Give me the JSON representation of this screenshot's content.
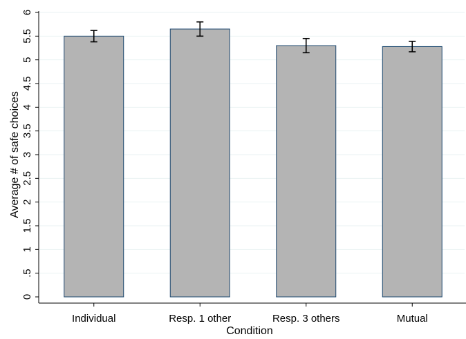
{
  "chart_data": {
    "type": "bar",
    "categories": [
      "Individual",
      "Resp. 1 other",
      "Resp. 3 others",
      "Mutual"
    ],
    "values": [
      5.5,
      5.65,
      5.3,
      5.28
    ],
    "error_bars": [
      {
        "low": 5.38,
        "high": 5.62
      },
      {
        "low": 5.5,
        "high": 5.8
      },
      {
        "low": 5.15,
        "high": 5.45
      },
      {
        "low": 5.17,
        "high": 5.39
      }
    ],
    "xlabel": "Condition",
    "ylabel": "Average # of safe choices",
    "ylim": [
      0,
      6
    ],
    "yticks": [
      0,
      0.5,
      1,
      1.5,
      2,
      2.5,
      3,
      3.5,
      4,
      4.5,
      5,
      5.5,
      6
    ],
    "ytick_labels": [
      "0",
      ".5",
      "1",
      "1.5",
      "2",
      "2.5",
      "3",
      "3.5",
      "4",
      "4.5",
      "5",
      "5.5",
      "6"
    ],
    "grid": true,
    "legend": "none",
    "colors": {
      "bar_fill": "#b4b4b4",
      "bar_edge": "#1a476f",
      "grid": "#eaf2f3",
      "axis": "#000000",
      "error_bar": "#000000"
    }
  }
}
